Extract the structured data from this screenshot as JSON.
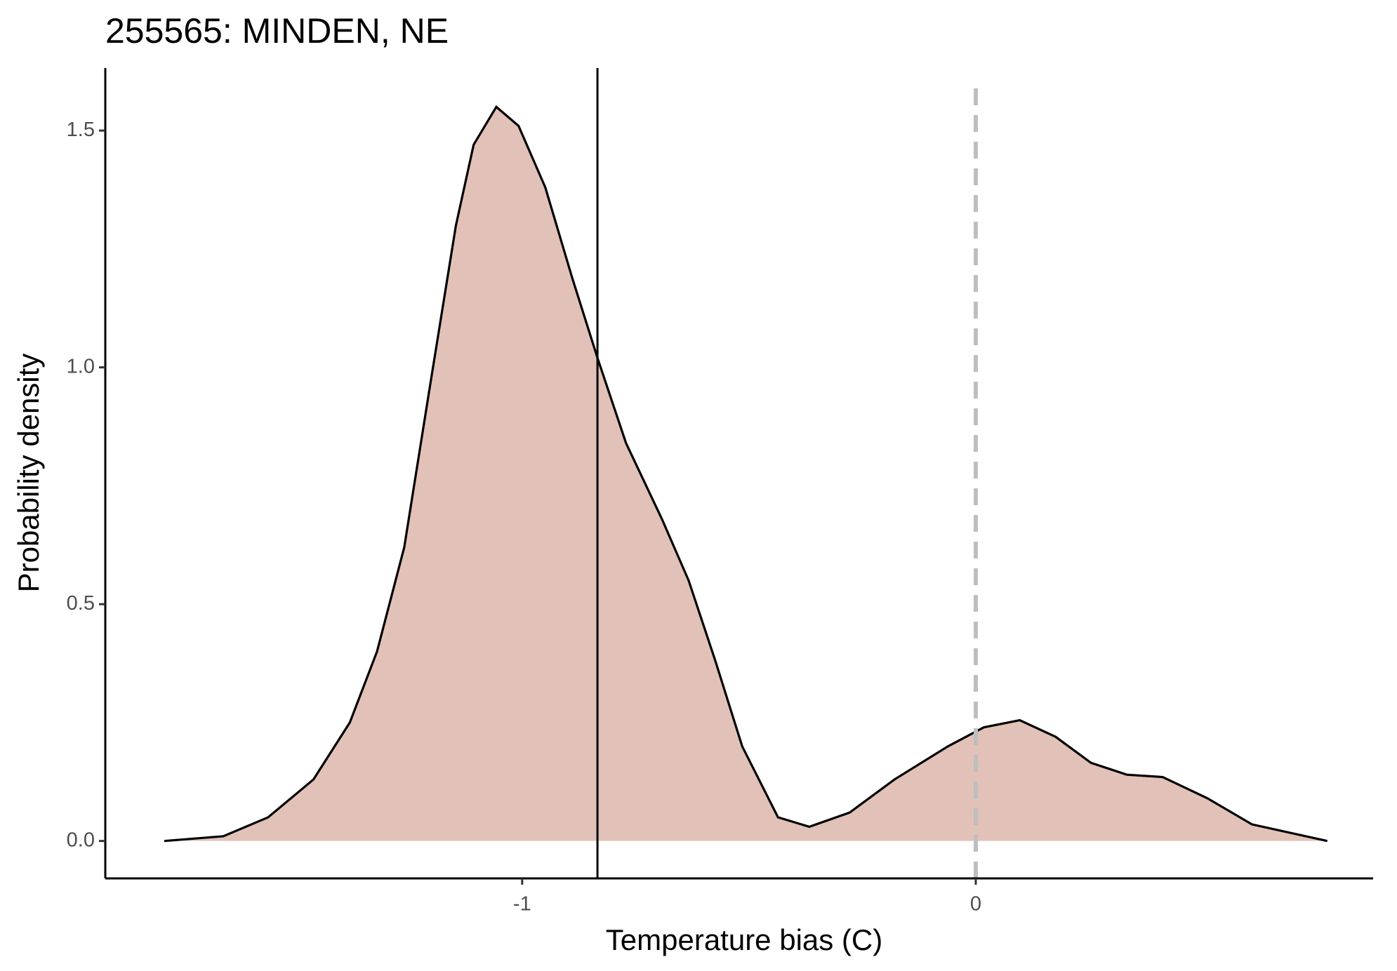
{
  "chart_data": {
    "type": "area",
    "title": "255565: MINDEN, NE",
    "xlabel": "Temperature bias (C)",
    "ylabel": "Probability density",
    "x": [
      -1.789,
      -1.659,
      -1.56,
      -1.46,
      -1.38,
      -1.32,
      -1.26,
      -1.205,
      -1.146,
      -1.107,
      -1.057,
      -1.008,
      -0.949,
      -0.89,
      -0.834,
      -0.771,
      -0.692,
      -0.633,
      -0.574,
      -0.515,
      -0.436,
      -0.367,
      -0.278,
      -0.179,
      -0.061,
      0.018,
      0.097,
      0.176,
      0.254,
      0.333,
      0.412,
      0.511,
      0.609,
      0.775
    ],
    "values": [
      0.0,
      0.01,
      0.05,
      0.13,
      0.25,
      0.4,
      0.62,
      0.95,
      1.3,
      1.47,
      1.55,
      1.51,
      1.38,
      1.19,
      1.02,
      0.84,
      0.68,
      0.55,
      0.38,
      0.2,
      0.05,
      0.03,
      0.06,
      0.13,
      0.2,
      0.24,
      0.255,
      0.22,
      0.165,
      0.14,
      0.135,
      0.09,
      0.035,
      0.0
    ],
    "color": "#e2c2b8",
    "line_color": "#000000",
    "reference_lines": [
      {
        "x": -0.834,
        "color": "#000000",
        "style": "solid"
      },
      {
        "x": 0,
        "color": "#bebebe",
        "style": "dashed"
      }
    ],
    "xlim": [
      -1.919,
      0.876
    ],
    "ylim": [
      -0.079,
      1.632
    ],
    "xticks": [
      -1,
      0
    ],
    "yticks": [
      {
        "value": 0,
        "label": "0.0"
      },
      0.5,
      {
        "value": 1,
        "label": "1.0"
      },
      1.5
    ],
    "grid": false
  }
}
